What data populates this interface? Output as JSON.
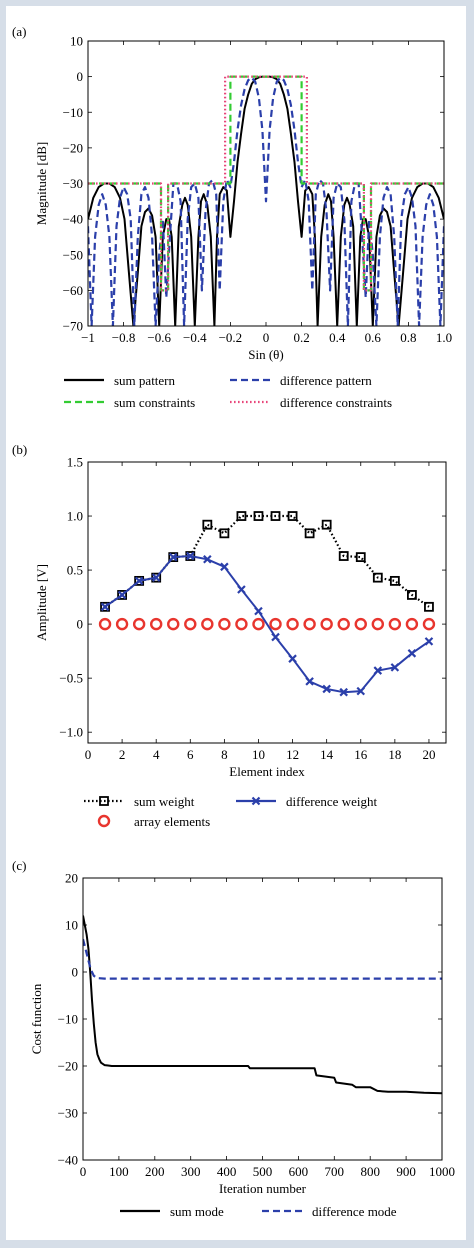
{
  "chart_data": [
    {
      "type": "line",
      "panel_label": "(a)",
      "xlabel": "Sin (θ)",
      "ylabel": "Magnitude [dB]",
      "xlim": [
        -1,
        1
      ],
      "ylim": [
        -70,
        10
      ],
      "xticks": [
        "−1",
        "−0.8",
        "−0.6",
        "−0.4",
        "−0.2",
        "0",
        "0.2",
        "0.4",
        "0.6",
        "0.8",
        "1.0"
      ],
      "yticks": [
        "10",
        "0",
        "−10",
        "−20",
        "−30",
        "−40",
        "−50",
        "−60",
        "−70"
      ],
      "legend_position": "bottom",
      "series": [
        {
          "name": "sum pattern",
          "style": "solid",
          "color": "#000000",
          "x": [
            -1.0,
            -0.97,
            -0.94,
            -0.91,
            -0.88,
            -0.85,
            -0.82,
            -0.795,
            -0.77,
            -0.745,
            -0.72,
            -0.7,
            -0.68,
            -0.66,
            -0.64,
            -0.62,
            -0.6,
            -0.58,
            -0.56,
            -0.545,
            -0.53,
            -0.51,
            -0.49,
            -0.47,
            -0.455,
            -0.44,
            -0.42,
            -0.4,
            -0.38,
            -0.365,
            -0.35,
            -0.33,
            -0.31,
            -0.29,
            -0.275,
            -0.26,
            -0.24,
            -0.22,
            -0.2,
            -0.18,
            -0.16,
            -0.14,
            -0.12,
            -0.1,
            -0.08,
            -0.06,
            -0.04,
            -0.02,
            0.0,
            0.02,
            0.04,
            0.06,
            0.08,
            0.1,
            0.12,
            0.14,
            0.16,
            0.18,
            0.2,
            0.22,
            0.24,
            0.26,
            0.275,
            0.29,
            0.31,
            0.33,
            0.35,
            0.365,
            0.38,
            0.4,
            0.42,
            0.44,
            0.455,
            0.47,
            0.49,
            0.51,
            0.53,
            0.545,
            0.56,
            0.58,
            0.6,
            0.62,
            0.64,
            0.66,
            0.68,
            0.7,
            0.72,
            0.745,
            0.77,
            0.795,
            0.82,
            0.85,
            0.88,
            0.91,
            0.94,
            0.97,
            1.0
          ],
          "y": [
            -40,
            -34,
            -31,
            -30,
            -30,
            -31,
            -34,
            -40,
            -55,
            -70,
            -55,
            -42,
            -38,
            -37,
            -39,
            -45,
            -70,
            -45,
            -40,
            -40,
            -45,
            -70,
            -42,
            -36,
            -34,
            -36,
            -45,
            -70,
            -45,
            -35,
            -33,
            -36,
            -45,
            -70,
            -45,
            -33,
            -31,
            -32,
            -45,
            -35,
            -24,
            -16,
            -9,
            -5,
            -2,
            -0.7,
            -0.2,
            0,
            0,
            0,
            -0.2,
            -0.7,
            -2,
            -5,
            -9,
            -16,
            -24,
            -35,
            -45,
            -32,
            -31,
            -33,
            -45,
            -70,
            -45,
            -36,
            -33,
            -35,
            -45,
            -70,
            -45,
            -36,
            -34,
            -36,
            -42,
            -70,
            -45,
            -40,
            -40,
            -45,
            -70,
            -45,
            -39,
            -37,
            -38,
            -42,
            -55,
            -70,
            -55,
            -40,
            -34,
            -31,
            -30,
            -30,
            -31,
            -34,
            -40
          ]
        },
        {
          "name": "difference pattern",
          "style": "dashed",
          "color": "#2b3faa",
          "x": [
            -1.0,
            -0.98,
            -0.96,
            -0.94,
            -0.92,
            -0.9,
            -0.88,
            -0.86,
            -0.84,
            -0.82,
            -0.8,
            -0.78,
            -0.76,
            -0.74,
            -0.72,
            -0.7,
            -0.68,
            -0.66,
            -0.64,
            -0.62,
            -0.6,
            -0.58,
            -0.56,
            -0.54,
            -0.52,
            -0.5,
            -0.48,
            -0.46,
            -0.44,
            -0.42,
            -0.4,
            -0.38,
            -0.36,
            -0.34,
            -0.32,
            -0.3,
            -0.28,
            -0.26,
            -0.24,
            -0.22,
            -0.2,
            -0.18,
            -0.16,
            -0.14,
            -0.12,
            -0.1,
            -0.08,
            -0.06,
            -0.04,
            -0.02,
            0.0,
            0.02,
            0.04,
            0.06,
            0.08,
            0.1,
            0.12,
            0.14,
            0.16,
            0.18,
            0.2,
            0.22,
            0.24,
            0.26,
            0.28,
            0.3,
            0.32,
            0.34,
            0.36,
            0.38,
            0.4,
            0.42,
            0.44,
            0.46,
            0.48,
            0.5,
            0.52,
            0.54,
            0.56,
            0.58,
            0.6,
            0.62,
            0.64,
            0.66,
            0.68,
            0.7,
            0.72,
            0.74,
            0.76,
            0.78,
            0.8,
            0.82,
            0.84,
            0.86,
            0.88,
            0.9,
            0.92,
            0.94,
            0.96,
            0.98,
            1.0
          ],
          "y": [
            -42,
            -70,
            -45,
            -36,
            -33,
            -36,
            -45,
            -70,
            -42,
            -34,
            -31,
            -33,
            -40,
            -70,
            -45,
            -33,
            -31,
            -34,
            -45,
            -70,
            -50,
            -40,
            -62,
            -45,
            -30,
            -30,
            -35,
            -70,
            -40,
            -31,
            -30,
            -34,
            -60,
            -38,
            -30,
            -29,
            -33,
            -60,
            -35,
            -29,
            -31,
            -24,
            -15,
            -8,
            -3.5,
            -1,
            -0.3,
            -1.5,
            -6,
            -15,
            -35,
            -15,
            -6,
            -1.5,
            -0.3,
            -1,
            -3.5,
            -8,
            -15,
            -24,
            -31,
            -29,
            -35,
            -60,
            -33,
            -29,
            -30,
            -38,
            -60,
            -34,
            -30,
            -31,
            -40,
            -70,
            -35,
            -30,
            -30,
            -45,
            -62,
            -40,
            -50,
            -70,
            -45,
            -34,
            -31,
            -33,
            -45,
            -70,
            -40,
            -33,
            -31,
            -34,
            -42,
            -70,
            -45,
            -36,
            -33,
            -36,
            -45,
            -70,
            -42
          ]
        },
        {
          "name": "sum constraints",
          "style": "dashed",
          "color": "#33cc33",
          "x": [
            -1,
            -0.59,
            -0.59,
            -0.55,
            -0.55,
            -0.2,
            -0.2,
            0.2,
            0.2,
            0.55,
            0.55,
            0.59,
            0.59,
            1
          ],
          "y": [
            -30,
            -30,
            -60,
            -60,
            -30,
            -30,
            0,
            0,
            -30,
            -30,
            -60,
            -60,
            -30,
            -30
          ]
        },
        {
          "name": "difference constraints",
          "style": "dotted",
          "color": "#e8457a",
          "x": [
            -1,
            -0.59,
            -0.59,
            -0.55,
            -0.55,
            -0.23,
            -0.23,
            0.23,
            0.23,
            0.55,
            0.55,
            0.59,
            0.59,
            1
          ],
          "y": [
            -30,
            -30,
            -60,
            -60,
            -30,
            -30,
            0,
            0,
            -30,
            -30,
            -60,
            -60,
            -30,
            -30
          ]
        }
      ]
    },
    {
      "type": "line",
      "panel_label": "(b)",
      "xlabel": "Element index",
      "ylabel": "Amplitude [V]",
      "xlim": [
        0,
        21
      ],
      "ylim": [
        -1.1,
        1.5
      ],
      "xticks": [
        "0",
        "2",
        "4",
        "6",
        "8",
        "10",
        "12",
        "14",
        "16",
        "18",
        "20"
      ],
      "yticks": [
        "1.5",
        "1.0",
        "0.5",
        "0",
        "−0.5",
        "−1.0"
      ],
      "legend_position": "bottom",
      "series": [
        {
          "name": "sum weight",
          "style": "dotted",
          "marker": "square",
          "color": "#000000",
          "x": [
            1,
            2,
            3,
            4,
            5,
            6,
            7,
            8,
            9,
            10,
            11,
            12,
            13,
            14,
            15,
            16,
            17,
            18,
            19,
            20
          ],
          "y": [
            0.16,
            0.27,
            0.4,
            0.43,
            0.62,
            0.63,
            0.92,
            0.84,
            1.0,
            1.0,
            1.0,
            1.0,
            0.84,
            0.92,
            0.63,
            0.62,
            0.43,
            0.4,
            0.27,
            0.16
          ]
        },
        {
          "name": "difference weight",
          "style": "solid",
          "marker": "x",
          "color": "#2b3faa",
          "x": [
            1,
            2,
            3,
            4,
            5,
            6,
            7,
            8,
            9,
            10,
            11,
            12,
            13,
            14,
            15,
            16,
            17,
            18,
            19,
            20
          ],
          "y": [
            0.16,
            0.27,
            0.4,
            0.43,
            0.62,
            0.63,
            0.6,
            0.53,
            0.32,
            0.12,
            -0.12,
            -0.32,
            -0.53,
            -0.6,
            -0.63,
            -0.62,
            -0.43,
            -0.4,
            -0.27,
            -0.16
          ]
        },
        {
          "name": "array elements",
          "style": "none",
          "marker": "circle",
          "color": "#e8352e",
          "x": [
            1,
            2,
            3,
            4,
            5,
            6,
            7,
            8,
            9,
            10,
            11,
            12,
            13,
            14,
            15,
            16,
            17,
            18,
            19,
            20
          ],
          "y": [
            0,
            0,
            0,
            0,
            0,
            0,
            0,
            0,
            0,
            0,
            0,
            0,
            0,
            0,
            0,
            0,
            0,
            0,
            0,
            0
          ]
        }
      ]
    },
    {
      "type": "line",
      "panel_label": "(c)",
      "xlabel": "Iteration number",
      "ylabel": "Cost function",
      "xlim": [
        0,
        1000
      ],
      "ylim": [
        -40,
        20
      ],
      "xticks": [
        "0",
        "100",
        "200",
        "300",
        "400",
        "500",
        "600",
        "700",
        "800",
        "900",
        "1000"
      ],
      "yticks": [
        "20",
        "10",
        "0",
        "−10",
        "−20",
        "−30",
        "−40"
      ],
      "legend_position": "bottom",
      "series": [
        {
          "name": "sum mode",
          "style": "solid",
          "color": "#000000",
          "x": [
            0,
            5,
            10,
            15,
            20,
            25,
            30,
            35,
            40,
            45,
            50,
            60,
            70,
            80,
            100,
            150,
            200,
            300,
            400,
            460,
            465,
            500,
            600,
            645,
            650,
            700,
            705,
            750,
            760,
            800,
            820,
            850,
            900,
            950,
            1000
          ],
          "y": [
            12,
            10,
            8,
            5,
            0,
            -6,
            -11,
            -15,
            -17.5,
            -18.5,
            -19.3,
            -19.8,
            -19.9,
            -20,
            -20,
            -20,
            -20,
            -20,
            -20,
            -20,
            -20.5,
            -20.5,
            -20.5,
            -20.5,
            -22,
            -22.5,
            -23.5,
            -24,
            -24.5,
            -24.5,
            -25.3,
            -25.5,
            -25.5,
            -25.7,
            -25.8
          ]
        },
        {
          "name": "difference mode",
          "style": "dashed",
          "color": "#2b3faa",
          "x": [
            0,
            5,
            10,
            15,
            20,
            25,
            30,
            40,
            60,
            100,
            200,
            500,
            800,
            1000
          ],
          "y": [
            7,
            5.5,
            4,
            2.5,
            1,
            0,
            -0.8,
            -1.3,
            -1.4,
            -1.4,
            -1.4,
            -1.4,
            -1.4,
            -1.4
          ]
        }
      ]
    }
  ]
}
